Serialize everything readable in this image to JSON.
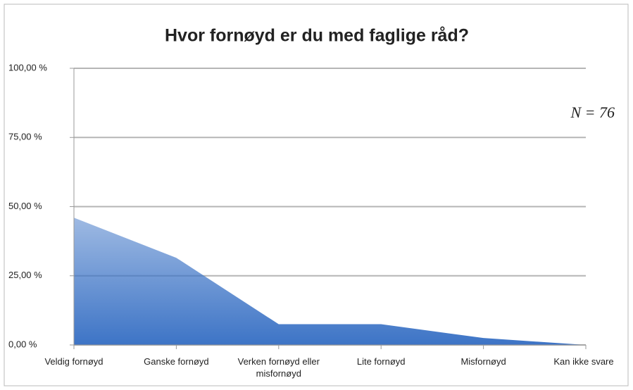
{
  "chart_data": {
    "type": "area",
    "title": "Hvor fornøyd er du med faglige råd?",
    "annotation": "N = 76",
    "categories": [
      "Veldig fornøyd",
      "Ganske fornøyd",
      "Verken fornøyd eller misfornøyd",
      "Lite fornøyd",
      "Misfornøyd",
      "Kan ikke svare"
    ],
    "values": [
      46,
      31.5,
      7.5,
      7.5,
      2.5,
      0
    ],
    "color": "#3d74c6",
    "ylim": [
      0,
      100
    ],
    "yticks": [
      {
        "value": 0,
        "label": "0,00 %"
      },
      {
        "value": 25,
        "label": "25,00 %"
      },
      {
        "value": 50,
        "label": "50,00 %"
      },
      {
        "value": 75,
        "label": "75,00 %"
      },
      {
        "value": 100,
        "label": "100,00 %"
      }
    ],
    "grid": true
  }
}
